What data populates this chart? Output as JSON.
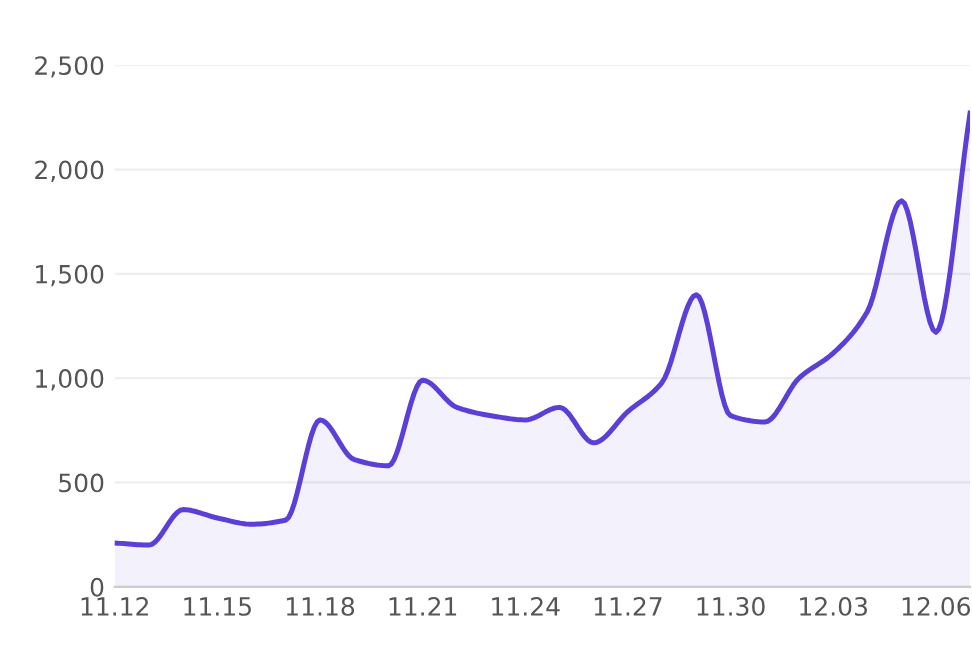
{
  "chart_data": {
    "type": "area",
    "categories": [
      "11.12",
      null,
      null,
      "11.15",
      null,
      null,
      "11.18",
      null,
      null,
      "11.21",
      null,
      null,
      "11.24",
      null,
      null,
      "11.27",
      null,
      null,
      "11.30",
      null,
      null,
      "12.03",
      null,
      null,
      "12.06",
      null
    ],
    "series": [
      {
        "color": "#5b3fd6",
        "values": [
          210,
          200,
          370,
          330,
          300,
          320,
          800,
          610,
          580,
          990,
          860,
          820,
          800,
          860,
          690,
          840,
          980,
          1400,
          820,
          790,
          1000,
          1120,
          1320,
          1850,
          1220,
          2270
        ]
      }
    ],
    "ylim": [
      0,
      2500
    ],
    "yticks": [
      0,
      {
        "value": 500,
        "label": "500"
      },
      {
        "value": 1000,
        "label": "1,000"
      },
      {
        "value": 1500,
        "label": "1,500"
      },
      {
        "value": 2000,
        "label": "2,000"
      },
      {
        "value": 2500,
        "label": "2,500"
      }
    ],
    "grid": "y",
    "marker": "none",
    "line_style": "solid"
  }
}
